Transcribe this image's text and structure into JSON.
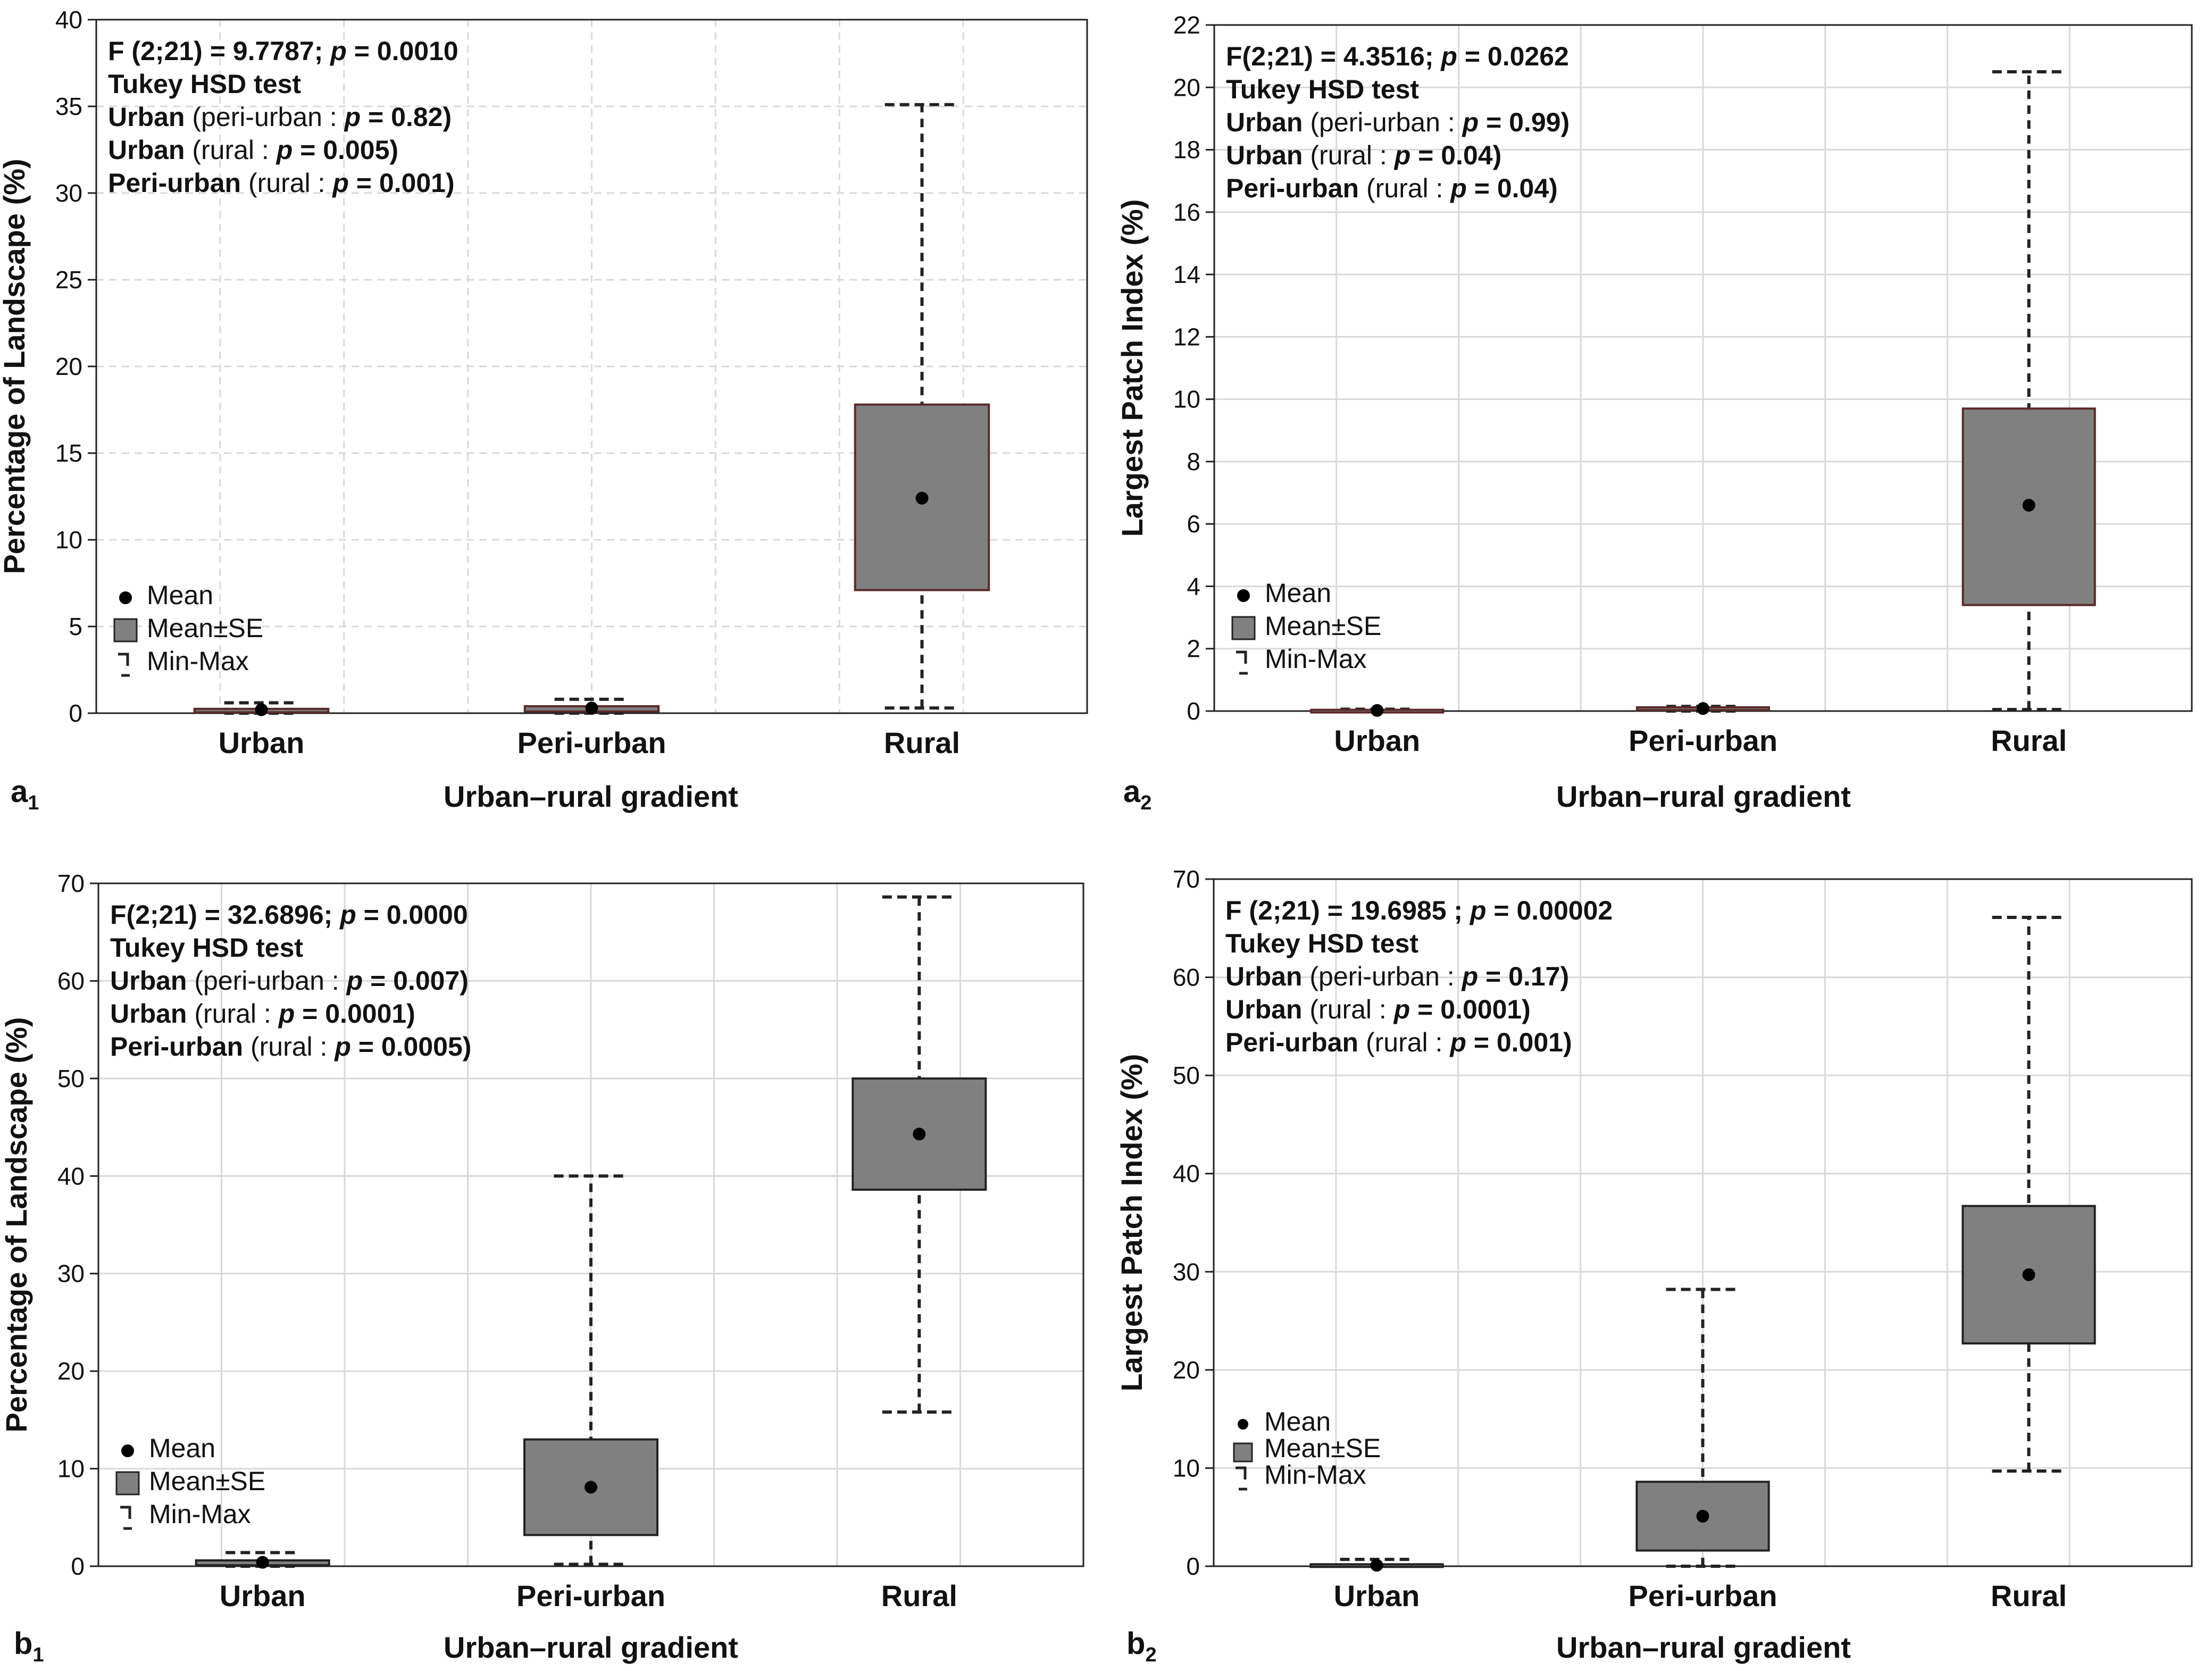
{
  "figure": {
    "categories": [
      "Urban",
      "Peri-urban",
      "Rural"
    ],
    "legend": {
      "mean": "Mean",
      "se": "Mean±SE",
      "minmax": "Min-Max"
    }
  },
  "colors": {
    "box_fill": "#808080",
    "box_border_dark": "#5a2a2a",
    "grid": "#d9d9d9",
    "mean": "#000000"
  },
  "chart_data": [
    {
      "panel": "a",
      "panel_sub": "1",
      "type": "box",
      "xlabel": "Urban–rural gradient",
      "ylabel": "Percentage of Landscape (%)",
      "ylim": [
        0,
        40
      ],
      "yticks": [
        0,
        5,
        10,
        15,
        20,
        25,
        30,
        35,
        40
      ],
      "grid": "dashed",
      "box_border": "dark",
      "legend_size": "large",
      "stats_lines": [
        [
          {
            "t": "F (2;21) = 9.7787; ",
            "s": "b"
          },
          {
            "t": "p",
            "s": "i"
          },
          {
            "t": " = 0.0010",
            "s": "b"
          }
        ],
        [
          {
            "t": "Tukey HSD test",
            "s": "b"
          }
        ],
        [
          {
            "t": "Urban",
            "s": "b"
          },
          {
            "t": " (peri-urban : ",
            "s": "n"
          },
          {
            "t": "p",
            "s": "i"
          },
          {
            "t": " = 0.82)",
            "s": "b"
          }
        ],
        [
          {
            "t": "Urban",
            "s": "b"
          },
          {
            "t": " (rural : ",
            "s": "n"
          },
          {
            "t": "p",
            "s": "i"
          },
          {
            "t": " = 0.005)",
            "s": "b"
          }
        ],
        [
          {
            "t": "Peri-urban",
            "s": "b"
          },
          {
            "t": " (rural : ",
            "s": "n"
          },
          {
            "t": "p",
            "s": "i"
          },
          {
            "t": " = 0.001)",
            "s": "b"
          }
        ]
      ],
      "series": [
        {
          "category": "Urban",
          "mean": 0.2,
          "se_low": 0.05,
          "se_high": 0.25,
          "min": 0.0,
          "max": 0.6
        },
        {
          "category": "Peri-urban",
          "mean": 0.3,
          "se_low": 0.1,
          "se_high": 0.4,
          "min": 0.0,
          "max": 0.8
        },
        {
          "category": "Rural",
          "mean": 12.4,
          "se_low": 7.1,
          "se_high": 17.8,
          "min": 0.3,
          "max": 35.1
        }
      ]
    },
    {
      "panel": "a",
      "panel_sub": "2",
      "type": "box",
      "xlabel": "Urban–rural gradient",
      "ylabel": "Largest Patch Index (%)",
      "ylim": [
        0,
        22
      ],
      "yticks": [
        0,
        2,
        4,
        6,
        8,
        10,
        12,
        14,
        16,
        18,
        20,
        22
      ],
      "grid": "solid",
      "box_border": "dark",
      "legend_size": "large",
      "stats_lines": [
        [
          {
            "t": "F(2;21) = 4.3516; ",
            "s": "b"
          },
          {
            "t": "p",
            "s": "i"
          },
          {
            "t": " = 0.0262",
            "s": "b"
          }
        ],
        [
          {
            "t": "Tukey HSD test",
            "s": "b"
          }
        ],
        [
          {
            "t": "Urban",
            "s": "b"
          },
          {
            "t": " (peri-urban : ",
            "s": "n"
          },
          {
            "t": "p",
            "s": "i"
          },
          {
            "t": " = 0.99)",
            "s": "b"
          }
        ],
        [
          {
            "t": "Urban",
            "s": "b"
          },
          {
            "t": " (rural : ",
            "s": "n"
          },
          {
            "t": "p",
            "s": "i"
          },
          {
            "t": " = 0.04)",
            "s": "b"
          }
        ],
        [
          {
            "t": "Peri-urban",
            "s": "b"
          },
          {
            "t": " (rural : ",
            "s": "n"
          },
          {
            "t": "p",
            "s": "i"
          },
          {
            "t": " = 0.04)",
            "s": "b"
          }
        ]
      ],
      "series": [
        {
          "category": "Urban",
          "mean": 0.02,
          "se_low": 0.0,
          "se_high": 0.04,
          "min": 0.0,
          "max": 0.06
        },
        {
          "category": "Peri-urban",
          "mean": 0.08,
          "se_low": 0.03,
          "se_high": 0.12,
          "min": 0.0,
          "max": 0.15
        },
        {
          "category": "Rural",
          "mean": 6.6,
          "se_low": 3.4,
          "se_high": 9.7,
          "min": 0.05,
          "max": 20.5
        }
      ]
    },
    {
      "panel": "b",
      "panel_sub": "1",
      "type": "box",
      "xlabel": "Urban–rural gradient",
      "ylabel": "Percentage of Landscape (%)",
      "ylim": [
        0,
        70
      ],
      "yticks": [
        0,
        10,
        20,
        30,
        40,
        50,
        60,
        70
      ],
      "grid": "solid",
      "box_border": "black",
      "legend_size": "large",
      "stats_lines": [
        [
          {
            "t": "F(2;21) = 32.6896; ",
            "s": "b"
          },
          {
            "t": "p",
            "s": "i"
          },
          {
            "t": " = 0.0000",
            "s": "b"
          }
        ],
        [
          {
            "t": "Tukey HSD test",
            "s": "b"
          }
        ],
        [
          {
            "t": "Urban",
            "s": "b"
          },
          {
            "t": " (peri-urban : ",
            "s": "n"
          },
          {
            "t": "p",
            "s": "i"
          },
          {
            "t": " = 0.007)",
            "s": "b"
          }
        ],
        [
          {
            "t": "Urban",
            "s": "b"
          },
          {
            "t": " (rural : ",
            "s": "n"
          },
          {
            "t": "p",
            "s": "i"
          },
          {
            "t": " = 0.0001)",
            "s": "b"
          }
        ],
        [
          {
            "t": "Peri-urban",
            "s": "b"
          },
          {
            "t": " (rural : ",
            "s": "n"
          },
          {
            "t": "p",
            "s": "i"
          },
          {
            "t": " = 0.0005)",
            "s": "b"
          }
        ]
      ],
      "series": [
        {
          "category": "Urban",
          "mean": 0.4,
          "se_low": 0.1,
          "se_high": 0.6,
          "min": 0.0,
          "max": 1.4
        },
        {
          "category": "Peri-urban",
          "mean": 8.1,
          "se_low": 3.2,
          "se_high": 13.0,
          "min": 0.2,
          "max": 40.0
        },
        {
          "category": "Rural",
          "mean": 44.3,
          "se_low": 38.6,
          "se_high": 50.0,
          "min": 15.8,
          "max": 68.6
        }
      ]
    },
    {
      "panel": "b",
      "panel_sub": "2",
      "type": "box",
      "xlabel": "Urban–rural gradient",
      "ylabel": "Largest Patch Index (%)",
      "ylim": [
        0,
        70
      ],
      "yticks": [
        0,
        10,
        20,
        30,
        40,
        50,
        60,
        70
      ],
      "grid": "solid",
      "box_border": "black",
      "legend_size": "small",
      "stats_lines": [
        [
          {
            "t": "F (2;21) = 19.6985 ; ",
            "s": "b"
          },
          {
            "t": "p",
            "s": "i"
          },
          {
            "t": "  = 0.00002",
            "s": "b"
          }
        ],
        [
          {
            "t": "Tukey HSD test",
            "s": "b"
          }
        ],
        [
          {
            "t": "Urban",
            "s": "b"
          },
          {
            "t": " (peri-urban : ",
            "s": "n"
          },
          {
            "t": "p",
            "s": "i"
          },
          {
            "t": " = 0.17)",
            "s": "b"
          }
        ],
        [
          {
            "t": "Urban",
            "s": "b"
          },
          {
            "t": " (rural : ",
            "s": "n"
          },
          {
            "t": "p",
            "s": "i"
          },
          {
            "t": " = 0.0001)",
            "s": "b"
          }
        ],
        [
          {
            "t": "Peri-urban",
            "s": "b"
          },
          {
            "t": " (rural : ",
            "s": "n"
          },
          {
            "t": "p",
            "s": "i"
          },
          {
            "t": " = 0.001)",
            "s": "b"
          }
        ]
      ],
      "series": [
        {
          "category": "Urban",
          "mean": 0.1,
          "se_low": 0.0,
          "se_high": 0.2,
          "min": 0.0,
          "max": 0.7
        },
        {
          "category": "Peri-urban",
          "mean": 5.1,
          "se_low": 1.6,
          "se_high": 8.6,
          "min": 0.0,
          "max": 28.2
        },
        {
          "category": "Rural",
          "mean": 29.7,
          "se_low": 22.7,
          "se_high": 36.7,
          "min": 9.7,
          "max": 66.1
        }
      ]
    }
  ]
}
